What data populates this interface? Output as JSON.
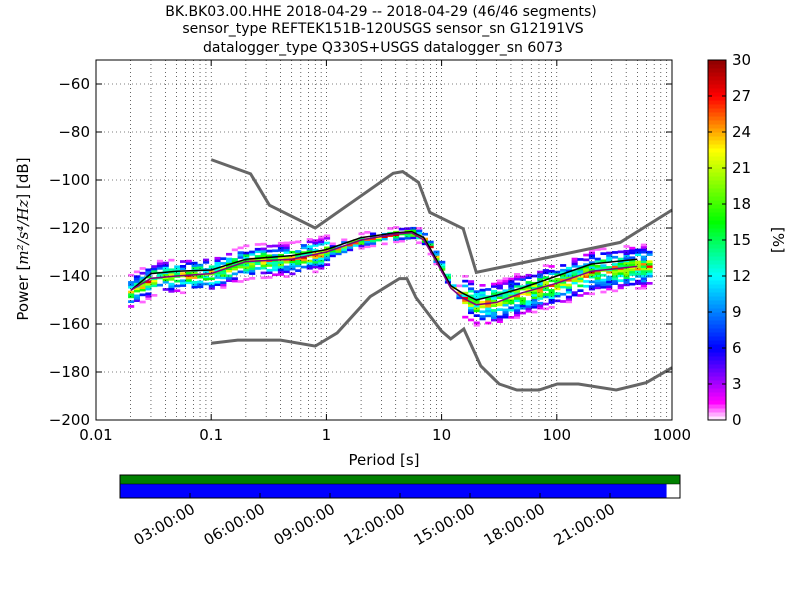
{
  "title": {
    "line1": "BK.BK03.00.HHE   2018-04-29 -- 2018-04-29  (46/46 segments)",
    "line2": "sensor_type REFTEK151B-120USGS sensor_sn G12191VS",
    "line3": "datalogger_type Q330S+USGS datalogger_sn 6073"
  },
  "chart_data": [
    {
      "type": "heatmap",
      "title": "BK.BK03.00.HHE   2018-04-29 -- 2018-04-29  (46/46 segments)",
      "xlabel": "Period [s]",
      "ylabel": "Power [m^2/s^4/Hz] [dB]",
      "xscale": "log",
      "xlim": [
        0.01,
        1000
      ],
      "ylim": [
        -200,
        -50
      ],
      "x_ticks": [
        "0.01",
        "0.1",
        "1",
        "10",
        "100",
        "1000"
      ],
      "y_ticks": [
        "-60",
        "-80",
        "-100",
        "-120",
        "-140",
        "-160",
        "-180",
        "-200"
      ],
      "grid": true,
      "colorbar": {
        "label": "[%]",
        "range": [
          0,
          30
        ],
        "ticks": [
          "0",
          "3",
          "6",
          "9",
          "12",
          "15",
          "18",
          "21",
          "24",
          "27",
          "30"
        ]
      },
      "series": [
        {
          "name": "",
          "role": "noise model high",
          "color": "#666666",
          "points": [
            [
              0.1,
              -91.5
            ],
            [
              0.22,
              -97.4
            ],
            [
              0.32,
              -110.5
            ],
            [
              0.8,
              -120
            ],
            [
              3.8,
              -97.2
            ],
            [
              4.6,
              -96.5
            ],
            [
              6.3,
              -101
            ],
            [
              7.9,
              -113.5
            ],
            [
              15.4,
              -120.3
            ],
            [
              20,
              -138.5
            ],
            [
              354.8,
              -126
            ],
            [
              1000,
              -112.5
            ]
          ]
        },
        {
          "name": "",
          "role": "noise model low",
          "color": "#666666",
          "points": [
            [
              0.1,
              -168
            ],
            [
              0.17,
              -166.7
            ],
            [
              0.4,
              -166.7
            ],
            [
              0.8,
              -169.2
            ],
            [
              1.24,
              -163.7
            ],
            [
              2.4,
              -148.6
            ],
            [
              4.3,
              -141.1
            ],
            [
              5,
              -141.1
            ],
            [
              6,
              -149
            ],
            [
              10,
              -163
            ],
            [
              12,
              -166.2
            ],
            [
              15.6,
              -162.1
            ],
            [
              21.9,
              -177.5
            ],
            [
              31.6,
              -185
            ],
            [
              45,
              -187.5
            ],
            [
              70,
              -187.5
            ],
            [
              101,
              -185
            ],
            [
              154,
              -185
            ],
            [
              328,
              -187.5
            ],
            [
              600,
              -184.4
            ],
            [
              1000,
              -178.2
            ]
          ]
        },
        {
          "name": "",
          "role": "mean PSD",
          "color": "#000000",
          "points": [
            [
              0.02,
              -146
            ],
            [
              0.03,
              -139
            ],
            [
              0.05,
              -138
            ],
            [
              0.1,
              -137.5
            ],
            [
              0.2,
              -133
            ],
            [
              0.5,
              -131.5
            ],
            [
              1,
              -129
            ],
            [
              2,
              -124
            ],
            [
              4,
              -122
            ],
            [
              5.5,
              -121.5
            ],
            [
              7,
              -124
            ],
            [
              9,
              -133
            ],
            [
              12,
              -144
            ],
            [
              15,
              -147
            ],
            [
              20,
              -150
            ],
            [
              30,
              -148
            ],
            [
              50,
              -145
            ],
            [
              100,
              -140
            ],
            [
              200,
              -135
            ],
            [
              500,
              -133
            ]
          ]
        },
        {
          "name": "",
          "role": "mode PSD",
          "color": "#800080",
          "points": [
            [
              0.02,
              -146
            ],
            [
              0.03,
              -141
            ],
            [
              0.05,
              -140
            ],
            [
              0.1,
              -139
            ],
            [
              0.2,
              -134
            ],
            [
              0.5,
              -133
            ],
            [
              1,
              -130
            ],
            [
              2,
              -125
            ],
            [
              4,
              -122.5
            ],
            [
              5.5,
              -122
            ],
            [
              7,
              -125
            ],
            [
              9,
              -134
            ],
            [
              12,
              -145
            ],
            [
              15,
              -149
            ],
            [
              20,
              -152
            ],
            [
              30,
              -151
            ],
            [
              50,
              -147
            ],
            [
              100,
              -143
            ],
            [
              200,
              -138
            ],
            [
              500,
              -136
            ]
          ]
        }
      ]
    },
    {
      "type": "timeline",
      "title": "",
      "time_ticks": [
        "03:00:00",
        "06:00:00",
        "09:00:00",
        "12:00:00",
        "15:00:00",
        "18:00:00",
        "21:00:00"
      ],
      "data_coverage_fraction": 1.0,
      "processed_coverage_fraction": 0.976,
      "colors": {
        "data": "#008000",
        "processed": "#0000ff"
      }
    }
  ],
  "colors": {
    "noise_model": "#666666",
    "mean_line": "#000000",
    "mode_line": "#800080",
    "timeline_green": "#008000",
    "timeline_blue": "#0000ff",
    "frame": "#000000"
  }
}
